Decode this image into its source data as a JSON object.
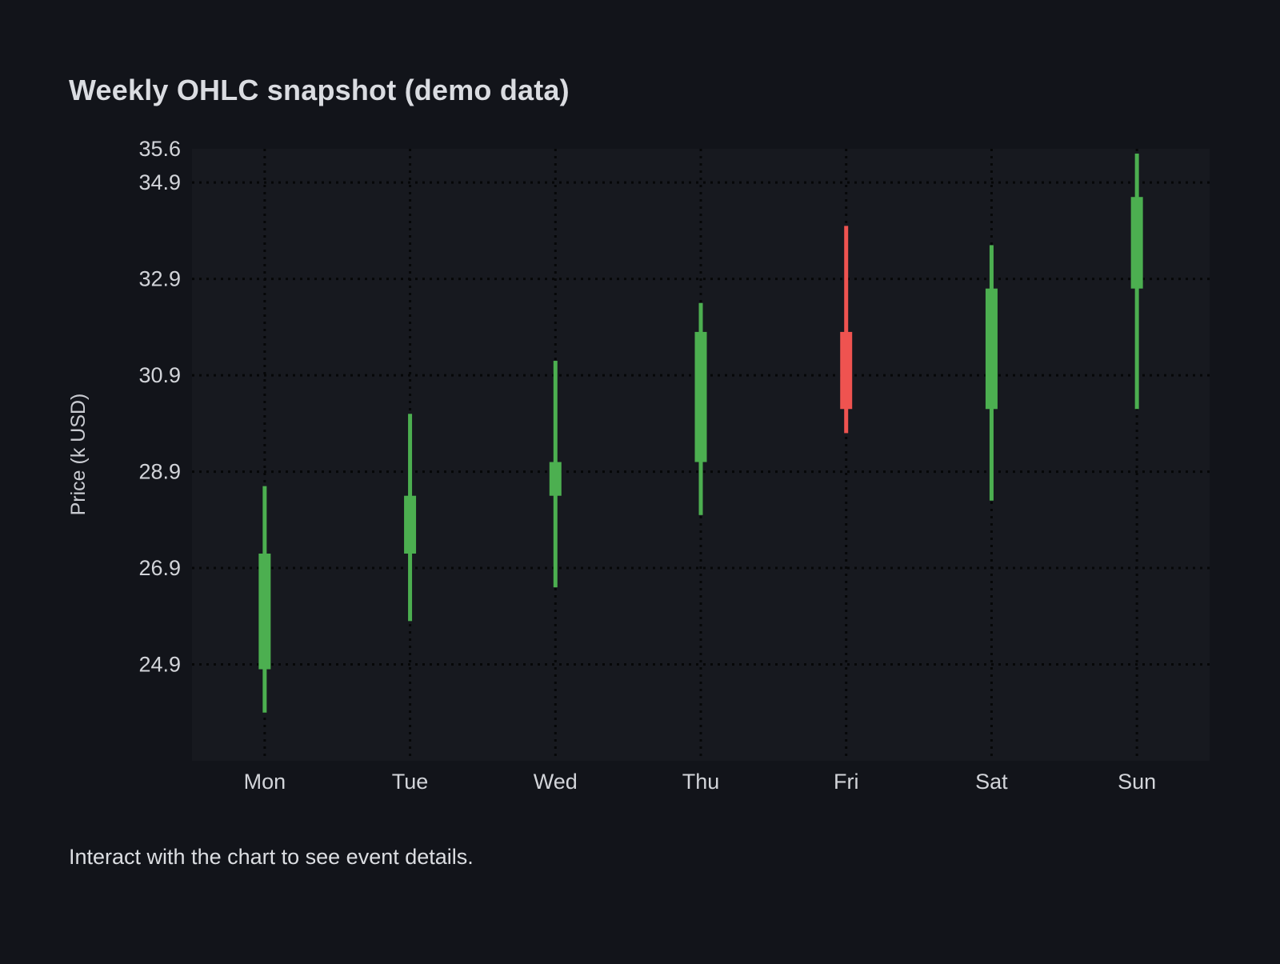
{
  "page": {
    "title": "Weekly OHLC snapshot (demo data)",
    "footer": "Interact with the chart to see event details."
  },
  "colors": {
    "background": "#12141a",
    "plot_background": "#17191f",
    "grid": "#060708",
    "up": "#4caf50",
    "down": "#ef5350",
    "tick_text": "#d2d4d9",
    "axis_title_text": "#c9cbd1"
  },
  "chart_data": {
    "type": "candlestick",
    "title": "Weekly OHLC snapshot (demo data)",
    "ylabel": "Price (k USD)",
    "xlabel": "",
    "categories": [
      "Mon",
      "Tue",
      "Wed",
      "Thu",
      "Fri",
      "Sat",
      "Sun"
    ],
    "series": [
      {
        "name": "Weekly OHLC",
        "points": [
          {
            "label": "Mon",
            "open": 24.8,
            "high": 28.6,
            "low": 23.9,
            "close": 27.2,
            "direction": "up"
          },
          {
            "label": "Tue",
            "open": 27.2,
            "high": 30.1,
            "low": 25.8,
            "close": 28.4,
            "direction": "up"
          },
          {
            "label": "Wed",
            "open": 28.4,
            "high": 31.2,
            "low": 26.5,
            "close": 29.1,
            "direction": "up"
          },
          {
            "label": "Thu",
            "open": 29.1,
            "high": 32.4,
            "low": 28.0,
            "close": 31.8,
            "direction": "up"
          },
          {
            "label": "Fri",
            "open": 31.8,
            "high": 34.0,
            "low": 29.7,
            "close": 30.2,
            "direction": "down"
          },
          {
            "label": "Sat",
            "open": 30.2,
            "high": 33.6,
            "low": 28.3,
            "close": 32.7,
            "direction": "up"
          },
          {
            "label": "Sun",
            "open": 32.7,
            "high": 35.5,
            "low": 30.2,
            "close": 34.6,
            "direction": "up"
          }
        ]
      }
    ],
    "y_ticks": [
      35.6,
      34.9,
      32.9,
      30.9,
      28.9,
      26.9,
      24.9
    ],
    "ylim": [
      22.9,
      35.6
    ],
    "grid": "dotted",
    "legend": "none"
  }
}
